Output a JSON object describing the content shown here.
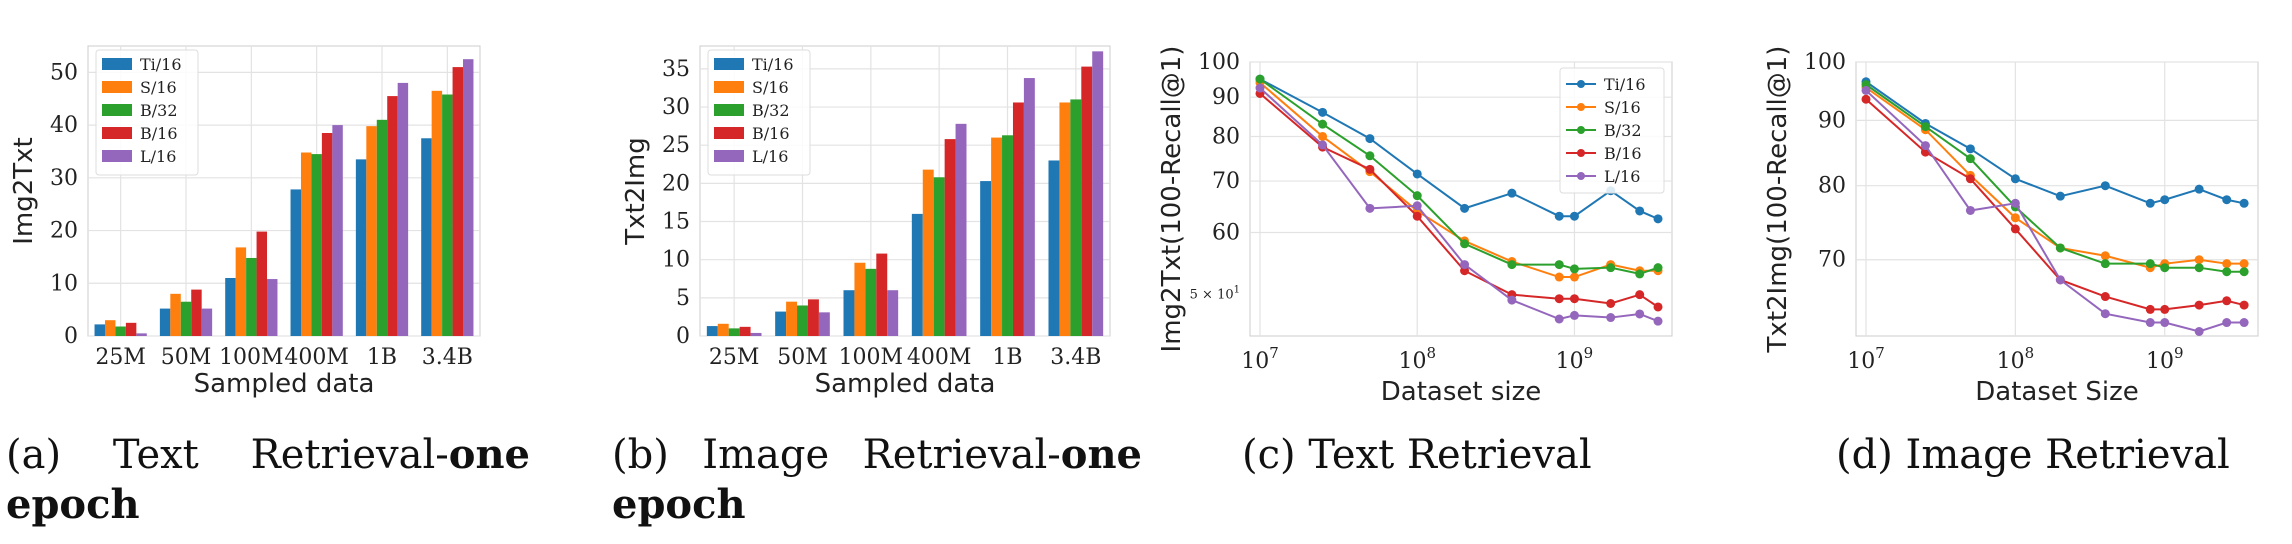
{
  "colors": {
    "Ti/16": "#1f77b4",
    "S/16": "#ff7f0e",
    "B/32": "#2ca02c",
    "B/16": "#d62728",
    "L/16": "#9467bd"
  },
  "captions": {
    "a": {
      "label": "(a)",
      "p1": "Text",
      "p2": "Retrieval-",
      "bold1": "one",
      "bold2": "epoch"
    },
    "b": {
      "label": "(b)",
      "p1": "Image",
      "p2": "Retrieval-",
      "bold1": "one",
      "bold2": "epoch"
    },
    "c": "(c) Text Retrieval",
    "d": "(d) Image Retrieval"
  },
  "chart_data": [
    {
      "type": "bar",
      "categories": [
        "25M",
        "50M",
        "100M",
        "400M",
        "1B",
        "3.4B"
      ],
      "xlabel": "Sampled data",
      "ylabel": "Img2Txt",
      "ylim": [
        0,
        55
      ],
      "yticks": [
        0,
        10,
        20,
        30,
        40,
        50
      ],
      "grid": true,
      "legend": "top-left",
      "series": [
        {
          "name": "Ti/16",
          "values": [
            2.2,
            5.2,
            11.0,
            27.8,
            33.5,
            37.5
          ]
        },
        {
          "name": "S/16",
          "values": [
            3.0,
            8.0,
            16.8,
            34.8,
            39.8,
            46.5
          ]
        },
        {
          "name": "B/32",
          "values": [
            1.8,
            6.5,
            14.8,
            34.5,
            41.0,
            45.8
          ]
        },
        {
          "name": "B/16",
          "values": [
            2.5,
            8.8,
            19.8,
            38.5,
            45.5,
            51.0
          ]
        },
        {
          "name": "L/16",
          "values": [
            0.5,
            5.2,
            10.8,
            40.0,
            48.0,
            52.5
          ]
        }
      ]
    },
    {
      "type": "bar",
      "categories": [
        "25M",
        "50M",
        "100M",
        "400M",
        "1B",
        "3.4B"
      ],
      "xlabel": "Sampled data",
      "ylabel": "Txt2Img",
      "ylim": [
        0,
        38
      ],
      "yticks": [
        0,
        5,
        10,
        15,
        20,
        25,
        30,
        35
      ],
      "grid": true,
      "legend": "top-left",
      "series": [
        {
          "name": "Ti/16",
          "values": [
            1.3,
            3.2,
            6.0,
            16.0,
            20.3,
            23.0
          ]
        },
        {
          "name": "S/16",
          "values": [
            1.6,
            4.5,
            9.6,
            21.8,
            26.0,
            30.6
          ]
        },
        {
          "name": "B/32",
          "values": [
            1.0,
            4.0,
            8.8,
            20.8,
            26.3,
            31.0
          ]
        },
        {
          "name": "B/16",
          "values": [
            1.2,
            4.8,
            10.8,
            25.8,
            30.6,
            35.3
          ]
        },
        {
          "name": "L/16",
          "values": [
            0.4,
            3.1,
            6.0,
            27.8,
            33.8,
            37.3
          ]
        }
      ]
    },
    {
      "type": "line",
      "xlabel": "Dataset size",
      "ylabel": "Img2Txt(100-Recall@1)",
      "xscale": "log",
      "yscale": "log",
      "xlim": [
        10000000.0,
        3500000000.0
      ],
      "ylim": [
        44,
        100
      ],
      "xticks": [
        {
          "v": 10000000.0,
          "base": "10",
          "exp": "7"
        },
        {
          "v": 100000000.0,
          "base": "10",
          "exp": "8"
        },
        {
          "v": 1000000000.0,
          "base": "10",
          "exp": "9"
        }
      ],
      "yticks": [
        {
          "v": 60,
          "label": "60"
        },
        {
          "v": 70,
          "label": "70"
        },
        {
          "v": 80,
          "label": "80"
        },
        {
          "v": 90,
          "label": "90"
        },
        {
          "v": 100,
          "label": "100"
        }
      ],
      "minor_label": {
        "v": 50,
        "base": "5 × 10",
        "exp": "1"
      },
      "grid": true,
      "legend": "top-right",
      "x": [
        10000000.0,
        25000000.0,
        50000000.0,
        100000000.0,
        200000000.0,
        400000000.0,
        800000000.0,
        1000000000.0,
        1700000000.0,
        2600000000.0,
        3400000000.0
      ],
      "series": [
        {
          "name": "Ti/16",
          "values": [
            95,
            86,
            79.5,
            71.5,
            64.5,
            67.5,
            63.0,
            63.0,
            68.0,
            64.0,
            62.5
          ]
        },
        {
          "name": "S/16",
          "values": [
            94,
            80,
            72,
            64,
            58.5,
            55.0,
            52.5,
            52.5,
            54.5,
            53.5,
            53.5
          ]
        },
        {
          "name": "B/32",
          "values": [
            95,
            83,
            75.5,
            67,
            58,
            54.5,
            54.5,
            53.8,
            54.0,
            53.0,
            54.0
          ]
        },
        {
          "name": "B/16",
          "values": [
            91,
            77.5,
            72.5,
            63,
            53.5,
            49.8,
            49.2,
            49.2,
            48.5,
            49.8,
            48.0
          ]
        },
        {
          "name": "L/16",
          "values": [
            92.5,
            78,
            64.5,
            65,
            54.5,
            49.0,
            46.3,
            46.8,
            46.5,
            47.0,
            46.0
          ]
        }
      ]
    },
    {
      "type": "line",
      "xlabel": "Dataset Size",
      "ylabel": "Txt2Img(100-Recall@1)",
      "xscale": "log",
      "yscale": "log",
      "xlim": [
        10000000.0,
        3500000000.0
      ],
      "ylim": [
        61,
        100
      ],
      "xticks": [
        {
          "v": 10000000.0,
          "base": "10",
          "exp": "7"
        },
        {
          "v": 100000000.0,
          "base": "10",
          "exp": "8"
        },
        {
          "v": 1000000000.0,
          "base": "10",
          "exp": "9"
        }
      ],
      "yticks": [
        {
          "v": 70,
          "label": "70"
        },
        {
          "v": 80,
          "label": "80"
        },
        {
          "v": 90,
          "label": "90"
        },
        {
          "v": 100,
          "label": "100"
        }
      ],
      "grid": true,
      "legend": "none",
      "x": [
        10000000.0,
        25000000.0,
        50000000.0,
        100000000.0,
        200000000.0,
        400000000.0,
        800000000.0,
        1000000000.0,
        1700000000.0,
        2600000000.0,
        3400000000.0
      ],
      "series": [
        {
          "name": "Ti/16",
          "values": [
            96.5,
            89.5,
            85.5,
            81,
            78.5,
            80,
            77.5,
            78,
            79.5,
            78,
            77.5
          ]
        },
        {
          "name": "S/16",
          "values": [
            95.5,
            88.5,
            81.5,
            75.5,
            71.5,
            70.5,
            69.0,
            69.5,
            70.0,
            69.5,
            69.5
          ]
        },
        {
          "name": "B/32",
          "values": [
            96,
            89,
            84,
            77,
            71.5,
            69.5,
            69.5,
            69.0,
            69.0,
            68.5,
            68.5
          ]
        },
        {
          "name": "B/16",
          "values": [
            93.5,
            85,
            81,
            74,
            67.5,
            65.5,
            64.0,
            64.0,
            64.5,
            65.0,
            64.5
          ]
        },
        {
          "name": "L/16",
          "values": [
            95,
            86,
            76.5,
            77.5,
            67.5,
            63.5,
            62.5,
            62.5,
            61.5,
            62.5,
            62.5
          ]
        }
      ]
    }
  ]
}
